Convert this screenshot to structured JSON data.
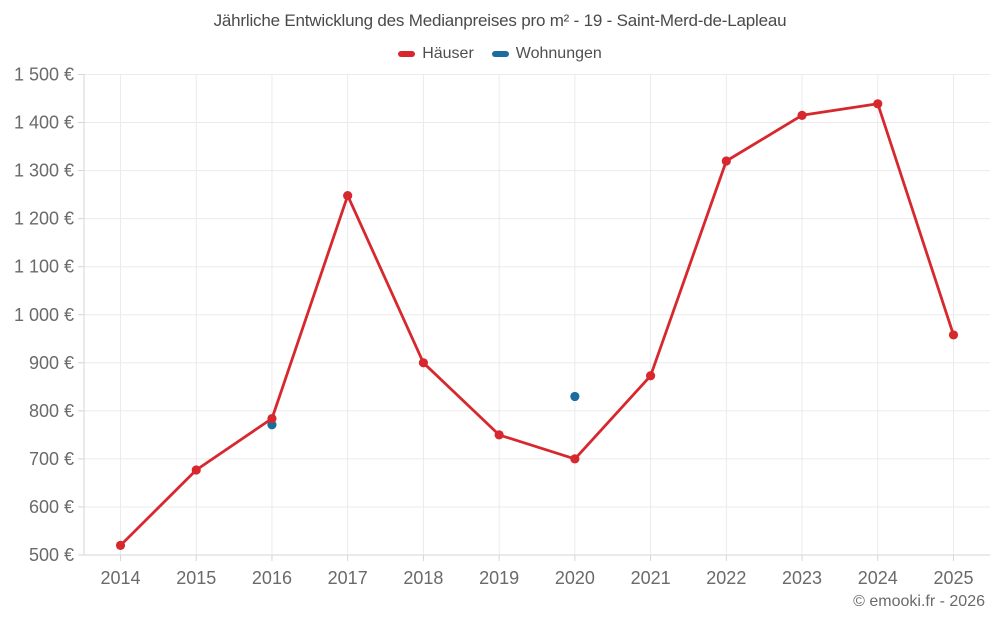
{
  "title": "Jährliche Entwicklung des Medianpreises pro m² - 19 - Saint-Merd-de-Lapleau",
  "legend": [
    {
      "label": "Häuser",
      "color": "#d7282e"
    },
    {
      "label": "Wohnungen",
      "color": "#1a6d9e"
    }
  ],
  "footer": "© emooki.fr - 2026",
  "colors": {
    "haeuser": "#d7282e",
    "wohnungen": "#1a6d9e",
    "grid": "#ebebee",
    "axis": "#d4d4d9",
    "tick_text": "#6a6a6a",
    "title_text": "#4a4a4a"
  },
  "chart_data": {
    "type": "line",
    "title": "Jährliche Entwicklung des Medianpreises pro m² - 19 - Saint-Merd-de-Lapleau",
    "categories": [
      "2014",
      "2015",
      "2016",
      "2017",
      "2018",
      "2019",
      "2020",
      "2021",
      "2022",
      "2023",
      "2024",
      "2025"
    ],
    "series": [
      {
        "name": "Häuser",
        "color": "#d7282e",
        "values": [
          520,
          677,
          784,
          1248,
          900,
          750,
          700,
          873,
          1320,
          1415,
          1439,
          958
        ]
      },
      {
        "name": "Wohnungen",
        "color": "#1a6d9e",
        "values": [
          null,
          null,
          771,
          null,
          null,
          null,
          830,
          null,
          null,
          null,
          null,
          null
        ]
      }
    ],
    "xlabel": "",
    "ylabel": "",
    "ylim": [
      500,
      1500
    ],
    "ytick_step": 100,
    "ytick_suffix": " €",
    "grid": true,
    "legend_position": "top"
  }
}
